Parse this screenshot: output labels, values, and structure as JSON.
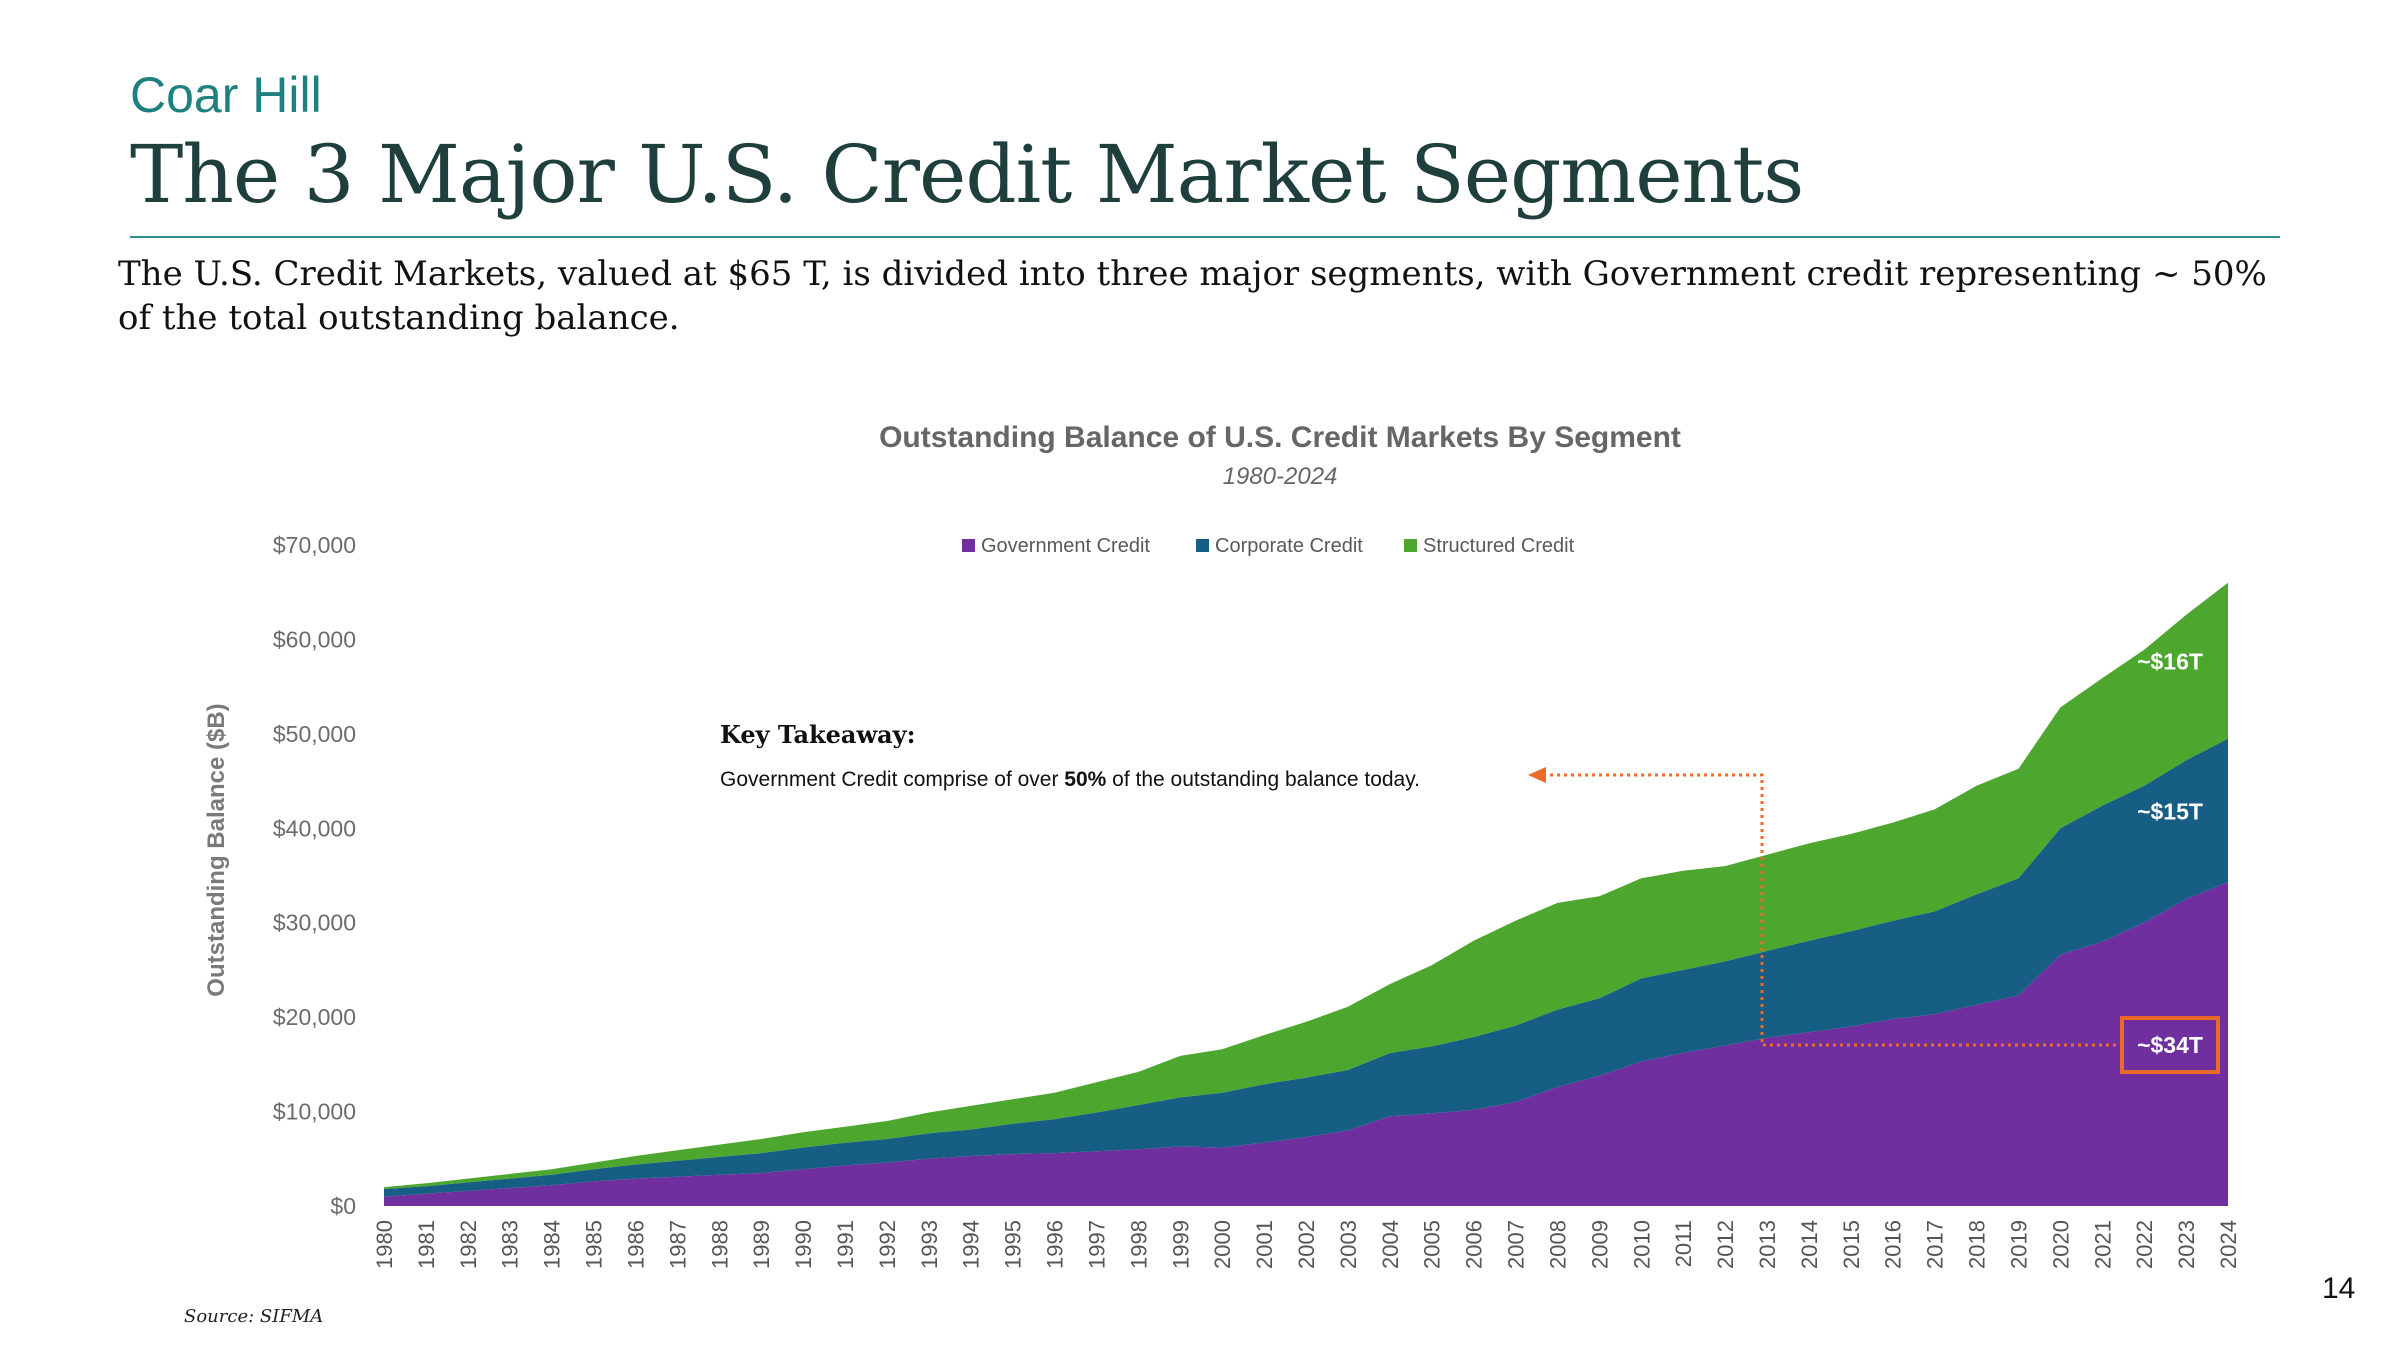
{
  "slide": {
    "brand": "Coar Hill",
    "title": "The 3 Major U.S. Credit Market Segments",
    "intro": "The U.S. Credit Markets, valued at $65 T, is divided into three major segments, with Government credit representing ~ 50% of the total outstanding balance.",
    "page_number": "14",
    "source": "Source: SIFMA"
  },
  "chart_data": {
    "type": "area",
    "stacked": true,
    "title": "Outstanding Balance of U.S. Credit Markets By Segment",
    "subtitle": "1980-2024",
    "xlabel": "",
    "ylabel": "Outstanding Balance ($B)",
    "ylim": [
      0,
      70000
    ],
    "yticks": [
      "$0",
      "$10,000",
      "$20,000",
      "$30,000",
      "$40,000",
      "$50,000",
      "$60,000",
      "$70,000"
    ],
    "grid": false,
    "legend_position": "top-center",
    "x": [
      "1980",
      "1981",
      "1982",
      "1983",
      "1984",
      "1985",
      "1986",
      "1987",
      "1988",
      "1989",
      "1990",
      "1991",
      "1992",
      "1993",
      "1994",
      "1995",
      "1996",
      "1997",
      "1998",
      "1999",
      "2000",
      "2001",
      "2002",
      "2003",
      "2004",
      "2005",
      "2006",
      "2007",
      "2008",
      "2009",
      "2010",
      "2011",
      "2012",
      "2013",
      "2014",
      "2015",
      "2016",
      "2017",
      "2018",
      "2019",
      "2020",
      "2021",
      "2022",
      "2023",
      "2024"
    ],
    "series": [
      {
        "name": "Government Credit",
        "color": "#6f2f9f",
        "values": [
          1000,
          1300,
          1600,
          1900,
          2200,
          2600,
          2900,
          3100,
          3300,
          3500,
          3900,
          4300,
          4600,
          5000,
          5300,
          5500,
          5600,
          5800,
          6000,
          6300,
          6200,
          6700,
          7300,
          8000,
          9500,
          9800,
          10200,
          11000,
          12600,
          13800,
          15300,
          16200,
          17000,
          17800,
          18400,
          19000,
          19800,
          20300,
          21300,
          22300,
          26600,
          28000,
          30000,
          32500,
          34300
        ]
      },
      {
        "name": "Corporate Credit",
        "color": "#165e84",
        "values": [
          800,
          800,
          900,
          1000,
          1100,
          1300,
          1500,
          1700,
          1900,
          2100,
          2300,
          2400,
          2500,
          2700,
          2800,
          3200,
          3600,
          4100,
          4700,
          5200,
          5800,
          6200,
          6300,
          6400,
          6700,
          7100,
          7700,
          8100,
          8200,
          8200,
          8800,
          8800,
          8900,
          9200,
          9700,
          10100,
          10400,
          10900,
          11700,
          12400,
          13400,
          14400,
          14500,
          14700,
          15200
        ]
      },
      {
        "name": "Structured Credit",
        "color": "#4da72f",
        "values": [
          200,
          300,
          400,
          500,
          600,
          700,
          900,
          1100,
          1300,
          1500,
          1600,
          1700,
          1900,
          2200,
          2500,
          2600,
          2800,
          3200,
          3500,
          4400,
          4600,
          5200,
          5900,
          6700,
          7300,
          8600,
          10200,
          11100,
          11300,
          10800,
          10600,
          10500,
          10100,
          10200,
          10300,
          10300,
          10400,
          10800,
          11500,
          11600,
          12800,
          13500,
          14400,
          15400,
          16500
        ]
      }
    ],
    "annotations": [
      {
        "text": "~$16T",
        "series": "Structured Credit",
        "year": "2024"
      },
      {
        "text": "~$15T",
        "series": "Corporate Credit",
        "year": "2024"
      },
      {
        "text": "~$34T",
        "series": "Government Credit",
        "year": "2024",
        "highlight_color": "#ea6a2a"
      }
    ],
    "key_takeaway": {
      "heading": "Key Takeaway:",
      "text_before": "Government Credit comprise of over ",
      "emphasis": "50%",
      "text_after": " of the outstanding balance today."
    },
    "connector_color": "#ea6a2a"
  }
}
